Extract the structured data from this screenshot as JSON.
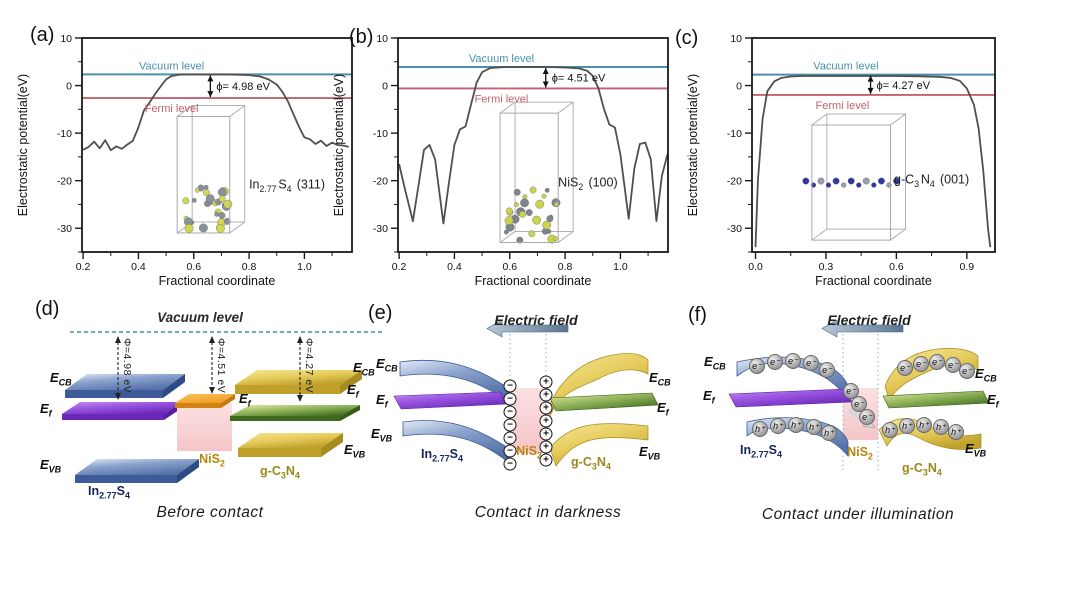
{
  "page": {
    "background": "#ffffff"
  },
  "colors": {
    "vacuum_line": "#4a90ad",
    "fermi_line": "#c2626c",
    "curve": "#4f4f4f",
    "axis": "#1a1a1a",
    "band_blue_light": "#e2eaf7",
    "band_blue_mid": "#8aa2cc",
    "band_blue_deep": "#5571a8",
    "band_blue_dark": "#3d5b99",
    "band_blue_side": "#2e4a82",
    "band_purple_light": "#c993f2",
    "band_purple_mid": "#9a55e0",
    "band_purple_dark": "#6a28b8",
    "band_purple_side": "#581fa0",
    "band_yellow_light": "#f6e697",
    "band_yellow_mid": "#e7cd5e",
    "band_yellow_dark": "#bfa02a",
    "band_yellow_side": "#a68b1e",
    "band_green_light": "#e9eda6",
    "band_green_mid": "#8fb35a",
    "band_green_front": "#3f6a1e",
    "band_green_side": "#355c18",
    "band_orange_light": "#f9c45f",
    "band_orange_mid": "#f09f22",
    "band_orange_dark": "#d28412",
    "band_orange_side": "#c07a0e",
    "nis2_pink_light": "#fbdfe0",
    "nis2_pink": "#f5c2c6",
    "dashed_teal": "#58a8b4",
    "dotted_guide": "#9fc3cf",
    "field_arrow_dark": "#5a7694",
    "field_arrow_light": "#b8c8d6",
    "in_label": "#16265c",
    "nis2_label": "#b8860b",
    "gc3n4_label": "#99891c",
    "inset_line": "#a9a9a9",
    "mid_arrow": "#d6d6d6"
  },
  "chart_data": [
    {
      "type": "line",
      "panel": "(a)",
      "xlabel": "Fractional coordinate",
      "ylabel": "Electrostatic potential(eV)",
      "vacuum_label": "Vacuum level",
      "fermi_label": "Fermi level",
      "wf_label": "ϕ= 4.98 eV",
      "material_label": "In_{2.77}S_{4} (311)",
      "xlim": [
        0.196,
        1.172
      ],
      "ylim": [
        -35,
        10
      ],
      "xticks": [
        0.2,
        0.4,
        0.6,
        0.8,
        1.0
      ],
      "yticks": [
        10,
        0,
        -10,
        -20,
        -30
      ],
      "xminor": 0.1,
      "yminor": 5,
      "grid": false,
      "vacuum_level": 2.35,
      "fermi_level": -2.63,
      "vacuum_label_x": 0.52,
      "fermi_label_x": 0.52,
      "wf_arrow_x": 0.66,
      "material_pos": [
        0.8,
        -21.6
      ],
      "inset": {
        "style": "cluster",
        "x0": 0.54,
        "x1": 0.73,
        "ytop": -6.5,
        "ybot": -31,
        "seed": 3,
        "atom_colors": [
          "#d2d84e",
          "#8a9098"
        ]
      },
      "plot": {
        "x0": 70,
        "x1": 340,
        "y0": 23,
        "y1": 237
      },
      "series": [
        {
          "name": "electrostatic_potential",
          "x": [
            0.2,
            0.22,
            0.24,
            0.26,
            0.28,
            0.3,
            0.32,
            0.34,
            0.36,
            0.38,
            0.4,
            0.42,
            0.44,
            0.46,
            0.48,
            0.5,
            0.52,
            0.55,
            0.6,
            0.65,
            0.7,
            0.75,
            0.8,
            0.84,
            0.87,
            0.9,
            0.92,
            0.94,
            0.96,
            0.98,
            1.0,
            1.02,
            1.04,
            1.06,
            1.08,
            1.1,
            1.12,
            1.14,
            1.16
          ],
          "y": [
            -13.5,
            -12.9,
            -11.8,
            -13.2,
            -11.5,
            -13.6,
            -12.8,
            -13.3,
            -12.4,
            -11.6,
            -8.8,
            -5.2,
            -3.6,
            -1.8,
            -0.2,
            1.3,
            2.0,
            2.3,
            2.35,
            2.3,
            2.35,
            2.3,
            2.2,
            1.9,
            1.3,
            0.2,
            -1.3,
            -3.3,
            -6.0,
            -8.6,
            -10.9,
            -11.3,
            -12.3,
            -11.6,
            -12.7,
            -12.0,
            -12.5,
            -12.6,
            -12.9
          ]
        }
      ]
    },
    {
      "type": "line",
      "panel": "(b)",
      "xlabel": "Fractional coordinate",
      "ylabel": "Electrostatic potential(eV)",
      "vacuum_label": "Vacuum level",
      "fermi_label": "Fermi level",
      "wf_label": "ϕ= 4.51 eV",
      "material_label": "NiS_{2} (100)",
      "xlim": [
        0.196,
        1.172
      ],
      "ylim": [
        -35,
        10
      ],
      "xticks": [
        0.2,
        0.4,
        0.6,
        0.8,
        1.0
      ],
      "yticks": [
        10,
        0,
        -10,
        -20,
        -30
      ],
      "xminor": 0.1,
      "yminor": 5,
      "grid": false,
      "vacuum_level": 3.9,
      "fermi_level": -0.61,
      "vacuum_label_x": 0.57,
      "fermi_label_x": 0.57,
      "wf_arrow_x": 0.73,
      "material_pos": [
        0.775,
        -21.2
      ],
      "inset": {
        "style": "cluster",
        "x0": 0.565,
        "x1": 0.775,
        "ytop": -5.8,
        "ybot": -33,
        "seed": 8,
        "atom_colors": [
          "#c8d44a",
          "#7d848e"
        ]
      },
      "plot": {
        "x0": 70,
        "x1": 340,
        "y0": 23,
        "y1": 237
      },
      "series": [
        {
          "name": "electrostatic_potential",
          "x": [
            0.2,
            0.22,
            0.25,
            0.27,
            0.29,
            0.31,
            0.33,
            0.36,
            0.38,
            0.4,
            0.42,
            0.44,
            0.46,
            0.48,
            0.5,
            0.53,
            0.57,
            0.62,
            0.68,
            0.74,
            0.8,
            0.85,
            0.88,
            0.9,
            0.92,
            0.94,
            0.96,
            0.98,
            1.0,
            1.03,
            1.05,
            1.07,
            1.09,
            1.11,
            1.13,
            1.15,
            1.17
          ],
          "y": [
            -16.5,
            -21.5,
            -28.5,
            -21.0,
            -13.5,
            -12.5,
            -15.5,
            -29.0,
            -20.5,
            -12.5,
            -9.2,
            -8.6,
            -4.0,
            0.6,
            2.8,
            3.7,
            3.85,
            3.9,
            3.9,
            3.9,
            3.8,
            3.6,
            3.1,
            2.0,
            -0.5,
            -4.8,
            -8.2,
            -8.8,
            -14.5,
            -28.0,
            -17.5,
            -12.3,
            -12.0,
            -15.5,
            -28.5,
            -19.0,
            -14.5
          ]
        }
      ]
    },
    {
      "type": "line",
      "panel": "(c)",
      "xlabel": "Fractional coordinate",
      "ylabel": "Electrostatic potential(eV)",
      "vacuum_label": "Vacuum level",
      "fermi_label": "Fermi level",
      "wf_label": "ϕ= 4.27 eV",
      "material_label": "g-C_{3}N_{4} (001)",
      "xlim": [
        -0.015,
        1.02
      ],
      "ylim": [
        -35,
        10
      ],
      "xticks": [
        0.0,
        0.3,
        0.6,
        0.9
      ],
      "yticks": [
        10,
        0,
        -10,
        -20,
        -30
      ],
      "xminor": 0.15,
      "yminor": 5,
      "grid": false,
      "vacuum_level": 2.3,
      "fermi_level": -1.97,
      "vacuum_label_x": 0.385,
      "fermi_label_x": 0.37,
      "wf_arrow_x": 0.49,
      "material_pos": [
        0.59,
        -20.6
      ],
      "inset": {
        "style": "layer",
        "x0": 0.24,
        "x1": 0.575,
        "ytop": -8.3,
        "ybot": -32.5,
        "layer_y": -20.5,
        "seed": 5,
        "atom_colors": [
          "#34379d",
          "#9aa0aa"
        ]
      },
      "plot": {
        "x0": 70,
        "x1": 313,
        "y0": 23,
        "y1": 237
      },
      "series": [
        {
          "name": "electrostatic_potential",
          "x": [
            0.0,
            0.01,
            0.03,
            0.05,
            0.08,
            0.11,
            0.15,
            0.2,
            0.3,
            0.4,
            0.5,
            0.6,
            0.7,
            0.78,
            0.83,
            0.87,
            0.9,
            0.93,
            0.95,
            0.97,
            0.99,
            1.0
          ],
          "y": [
            -34,
            -20,
            -7,
            -1.2,
            0.9,
            1.6,
            1.9,
            2.0,
            2.0,
            2.0,
            2.0,
            2.0,
            1.95,
            1.85,
            1.6,
            1.0,
            -0.6,
            -4,
            -9,
            -18,
            -30,
            -34
          ]
        }
      ]
    }
  ],
  "diagrams": {
    "d": {
      "letter": "(d)",
      "vacuum_label": "Vacuum level",
      "phi": [
        "Φ=4.98 eV",
        "Φ=4.51 eV",
        "Φ=4.27 eV"
      ],
      "labels": {
        "ecb_l": "E_{CB}",
        "ef_l": "E_{f}",
        "evb_l": "E_{VB}",
        "ef_m": "E_{f}",
        "ecb_r": "E_{CB}",
        "ef_r": "E_{f}",
        "evb_r": "E_{VB}"
      },
      "materials": {
        "left": "In_{2.77}S_{4}",
        "mid": "NiS_{2}",
        "right": "g-C_{3}N_{4}"
      },
      "caption": "Before contact"
    },
    "e": {
      "letter": "(e)",
      "field_label": "Electric field",
      "labels": {
        "ecb_l": "E_{CB}",
        "ef_l": "E_{f}",
        "evb_l": "E_{VB}",
        "ecb_r": "E_{CB}",
        "ef_r": "E_{f}",
        "evb_r": "E_{VB}"
      },
      "materials": {
        "left": "In_{2.77}S_{4}",
        "mid": "NiS_{2}",
        "right": "g-C_{3}N_{4}"
      },
      "charges": {
        "minus": {
          "symbol": "−",
          "positions": [
            [
              160,
              96
            ],
            [
              160,
              109
            ],
            [
              160,
              122
            ],
            [
              160,
              135
            ],
            [
              160,
              148
            ],
            [
              160,
              161
            ],
            [
              160,
              174
            ]
          ]
        },
        "plus": {
          "symbol": "+",
          "positions": [
            [
              196,
              92
            ],
            [
              196,
              105
            ],
            [
              196,
              118
            ],
            [
              196,
              131
            ],
            [
              196,
              144
            ],
            [
              196,
              157
            ],
            [
              196,
              170
            ]
          ]
        }
      },
      "caption": "Contact in darkness"
    },
    "f": {
      "letter": "(f)",
      "field_label": "Electric field",
      "labels": {
        "ecb_l": "E_{CB}",
        "ef_l": "E_{f}",
        "ecb_r": "E_{CB}",
        "ef_r": "E_{f}",
        "evb_r": "E_{VB}"
      },
      "materials": {
        "left": "In_{2.77}S_{4}",
        "mid": "NiS_{2}",
        "right": "g-C_{3}N_{4}"
      },
      "particles": {
        "e_left": {
          "symbol": "e⁻",
          "positions": [
            [
              92,
              76
            ],
            [
              110,
              72
            ],
            [
              128,
              71
            ],
            [
              146,
              73
            ],
            [
              162,
              80
            ]
          ]
        },
        "h_left": {
          "symbol": "h⁺",
          "positions": [
            [
              95,
              139
            ],
            [
              113,
              136
            ],
            [
              131,
              135
            ],
            [
              149,
              137
            ],
            [
              164,
              143
            ]
          ]
        },
        "e_mid": {
          "symbol": "e⁻",
          "positions": [
            [
              186,
              101
            ],
            [
              194,
              114
            ],
            [
              202,
              127
            ]
          ]
        },
        "e_right": {
          "symbol": "e⁻",
          "positions": [
            [
              240,
              78
            ],
            [
              256,
              74
            ],
            [
              272,
              72
            ],
            [
              288,
              75
            ],
            [
              302,
              81
            ]
          ]
        },
        "h_right": {
          "symbol": "h⁺",
          "positions": [
            [
              225,
              140
            ],
            [
              242,
              136
            ],
            [
              259,
              135
            ],
            [
              276,
              137
            ],
            [
              291,
              142
            ]
          ]
        }
      },
      "caption": "Contact under illumination"
    }
  }
}
